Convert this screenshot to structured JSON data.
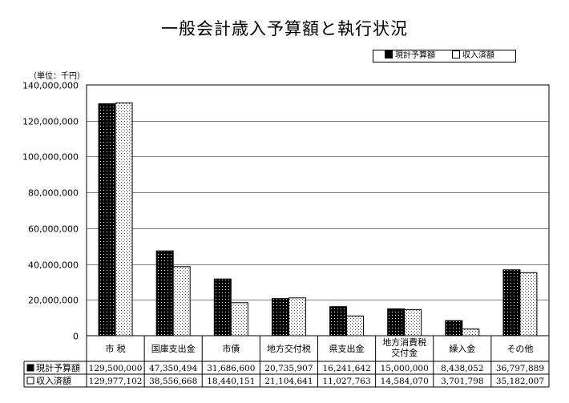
{
  "chart_data": {
    "type": "bar",
    "title": "一般会計歳入予算額と執行状況",
    "unit_label": "（単位：千円）",
    "categories": [
      "市 税",
      "国庫支出金",
      "市債",
      "地方交付税",
      "県支出金",
      [
        "地方消費税",
        "交付金"
      ],
      "繰入金",
      "その他"
    ],
    "series": [
      {
        "name": "現計予算額",
        "values": [
          129500000,
          47350494,
          31686600,
          20735907,
          16241642,
          15000000,
          8438052,
          36797889
        ]
      },
      {
        "name": "収入済額",
        "values": [
          129977102,
          38556668,
          18440151,
          21104641,
          11027763,
          14584070,
          3701798,
          35182007
        ]
      }
    ],
    "table_values": [
      [
        "129,500,000",
        "47,350,494",
        "31,686,600",
        "20,735,907",
        "16,241,642",
        "15,000,000",
        "8,438,052",
        "36,797,889"
      ],
      [
        "129,977,102",
        "38,556,668",
        "18,440,151",
        "21,104,641",
        "11,027,763",
        "14,584,070",
        "3,701,798",
        "35,182,007"
      ]
    ],
    "ylim": [
      0,
      140000000
    ],
    "yticks": [
      0,
      20000000,
      40000000,
      60000000,
      80000000,
      100000000,
      120000000,
      140000000
    ],
    "ytick_labels": [
      "0",
      "20,000,000",
      "40,000,000",
      "60,000,000",
      "80,000,000",
      "100,000,000",
      "120,000,000",
      "140,000,000"
    ],
    "grid": true,
    "legend_position": "top-right",
    "colors": {
      "series1_fill": "#000000",
      "series1_dots": "#ffffff",
      "series2_fill": "#ffffff",
      "series2_dots": "#000000"
    }
  }
}
